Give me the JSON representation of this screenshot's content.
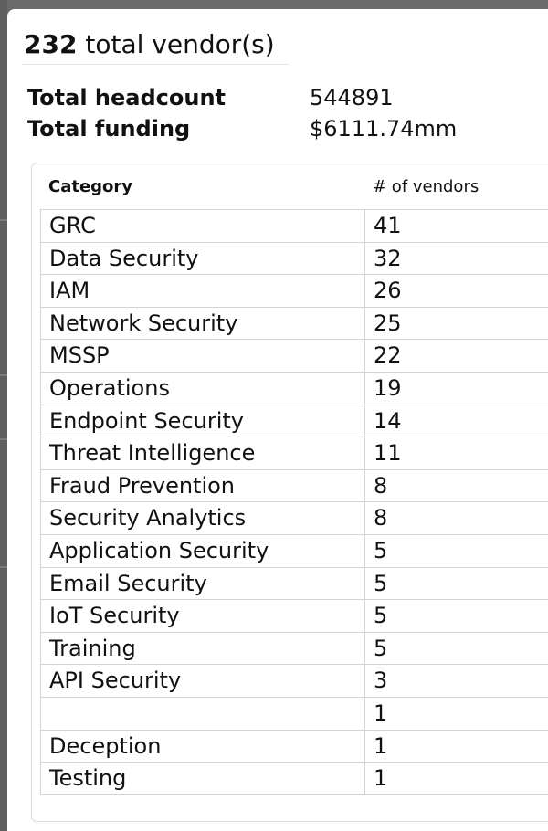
{
  "summary": {
    "count": "232",
    "count_suffix": " total vendor(s)",
    "headcount_label": "Total headcount",
    "headcount_value": "544891",
    "funding_label": "Total funding",
    "funding_value": "$6111.74mm"
  },
  "table": {
    "headers": {
      "category": "Category",
      "count": "# of vendors"
    },
    "rows": [
      {
        "category": "GRC",
        "count": "41"
      },
      {
        "category": "Data Security",
        "count": "32"
      },
      {
        "category": "IAM",
        "count": "26"
      },
      {
        "category": "Network Security",
        "count": "25"
      },
      {
        "category": "MSSP",
        "count": "22"
      },
      {
        "category": "Operations",
        "count": "19"
      },
      {
        "category": "Endpoint Security",
        "count": "14"
      },
      {
        "category": "Threat Intelligence",
        "count": "11"
      },
      {
        "category": "Fraud Prevention",
        "count": "8"
      },
      {
        "category": "Security Analytics",
        "count": "8"
      },
      {
        "category": "Application Security",
        "count": "5"
      },
      {
        "category": "Email Security",
        "count": "5"
      },
      {
        "category": "IoT Security",
        "count": "5"
      },
      {
        "category": "Training",
        "count": "5"
      },
      {
        "category": "API Security",
        "count": "3"
      },
      {
        "category": "",
        "count": "1"
      },
      {
        "category": "Deception",
        "count": "1"
      },
      {
        "category": "Testing",
        "count": "1"
      }
    ]
  }
}
